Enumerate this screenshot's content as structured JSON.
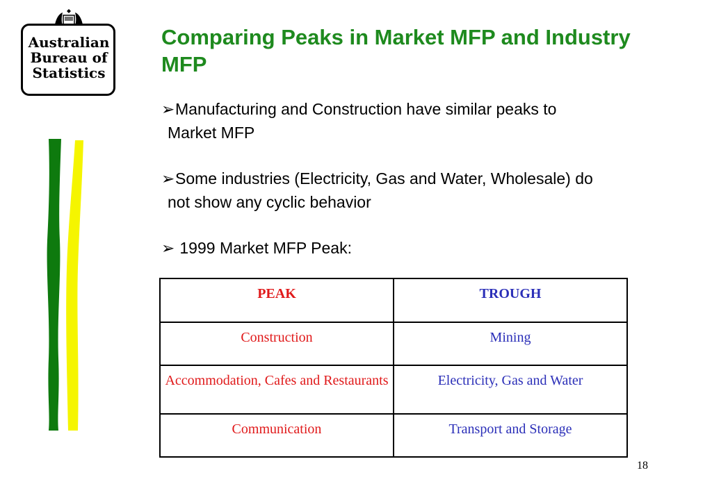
{
  "logo": {
    "line1": "Australian",
    "line2": "Bureau of",
    "line3": "Statistics",
    "crest_label": "AUSTRALIA"
  },
  "title": "Comparing Peaks in Market MFP and Industry MFP",
  "bullets": [
    {
      "line1": "Manufacturing and Construction have similar peaks to",
      "line2": "Market MFP"
    },
    {
      "line1": "Some industries (Electricity, Gas and Water, Wholesale) do",
      "line2": "not show any cyclic behavior"
    },
    {
      "line1": " 1999 Market MFP Peak:"
    }
  ],
  "bullet_symbol": "➢",
  "table": {
    "headers": [
      "PEAK",
      "TROUGH"
    ],
    "rows": [
      [
        "Construction",
        "Mining"
      ],
      [
        "Accommodation, Cafes and Restaurants",
        "Electricity, Gas and Water"
      ],
      [
        "Communication",
        "Transport and Storage"
      ]
    ]
  },
  "colors": {
    "title": "#1e8a1e",
    "peak": "#e0191a",
    "trough": "#2b2fb8",
    "stripe_green": "#0e7a0e",
    "stripe_yellow": "#f5f500"
  },
  "page_number": "18"
}
